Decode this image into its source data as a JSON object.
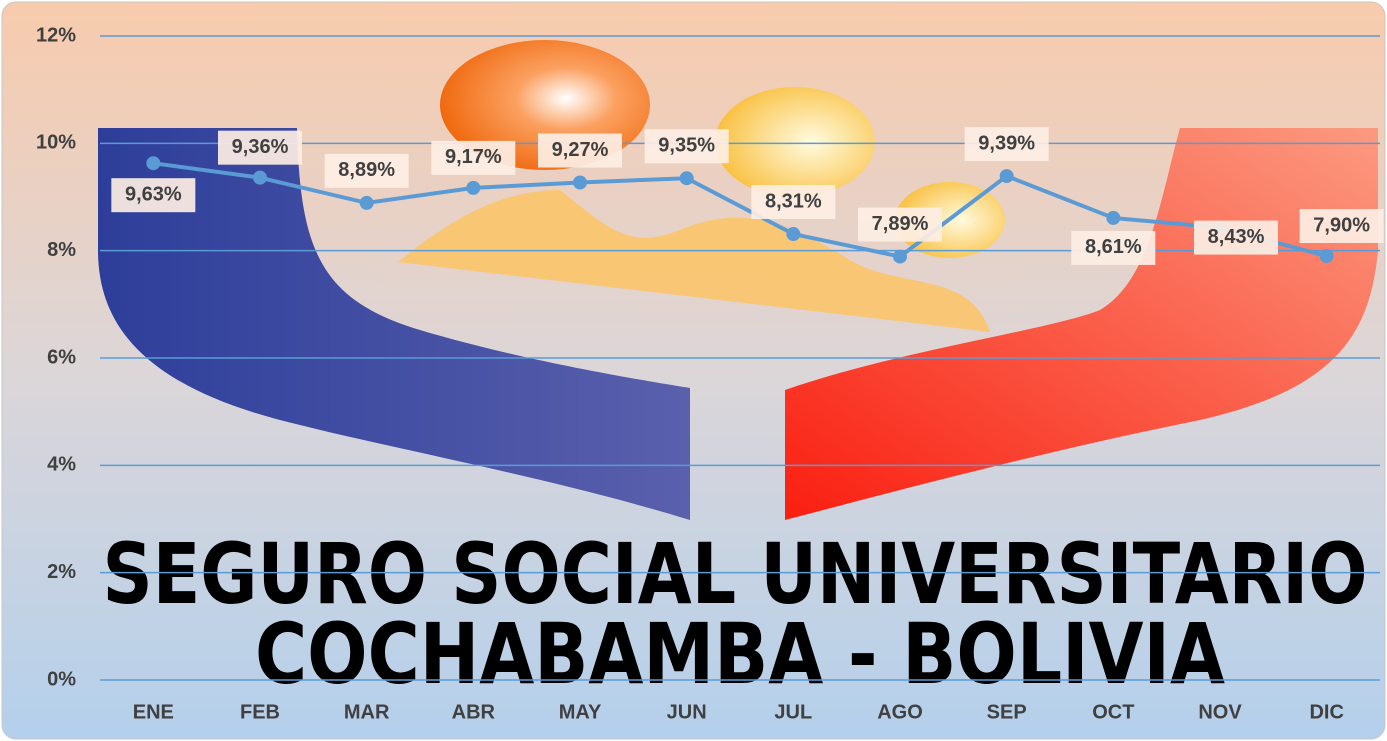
{
  "chart_data": {
    "type": "line",
    "categories": [
      "ENE",
      "FEB",
      "MAR",
      "ABR",
      "MAY",
      "JUN",
      "JUL",
      "AGO",
      "SEP",
      "OCT",
      "NOV",
      "DIC"
    ],
    "series": [
      {
        "color": "#5b9bd5",
        "values": [
          9.63,
          9.36,
          8.89,
          9.17,
          9.27,
          9.35,
          8.31,
          7.89,
          9.39,
          8.61,
          8.43,
          7.9
        ],
        "value_labels": [
          "9,63%",
          "9,36%",
          "8,89%",
          "9,17%",
          "9,27%",
          "9,35%",
          "8,31%",
          "7,89%",
          "9,39%",
          "8,61%",
          "8,43%",
          "7,90%"
        ]
      }
    ],
    "ylim": [
      0,
      12
    ],
    "yticks": [
      {
        "value": 0,
        "label": "0%"
      },
      {
        "value": 2,
        "label": "2%"
      },
      {
        "value": 4,
        "label": "4%"
      },
      {
        "value": 6,
        "label": "6%"
      },
      {
        "value": 8,
        "label": "8%"
      },
      {
        "value": 10,
        "label": "10%"
      },
      {
        "value": 12,
        "label": "12%"
      }
    ],
    "grid": true,
    "watermark": [
      "SEGURO SOCIAL UNIVERSITARIO",
      "COCHABAMBA - BOLIVIA"
    ]
  }
}
